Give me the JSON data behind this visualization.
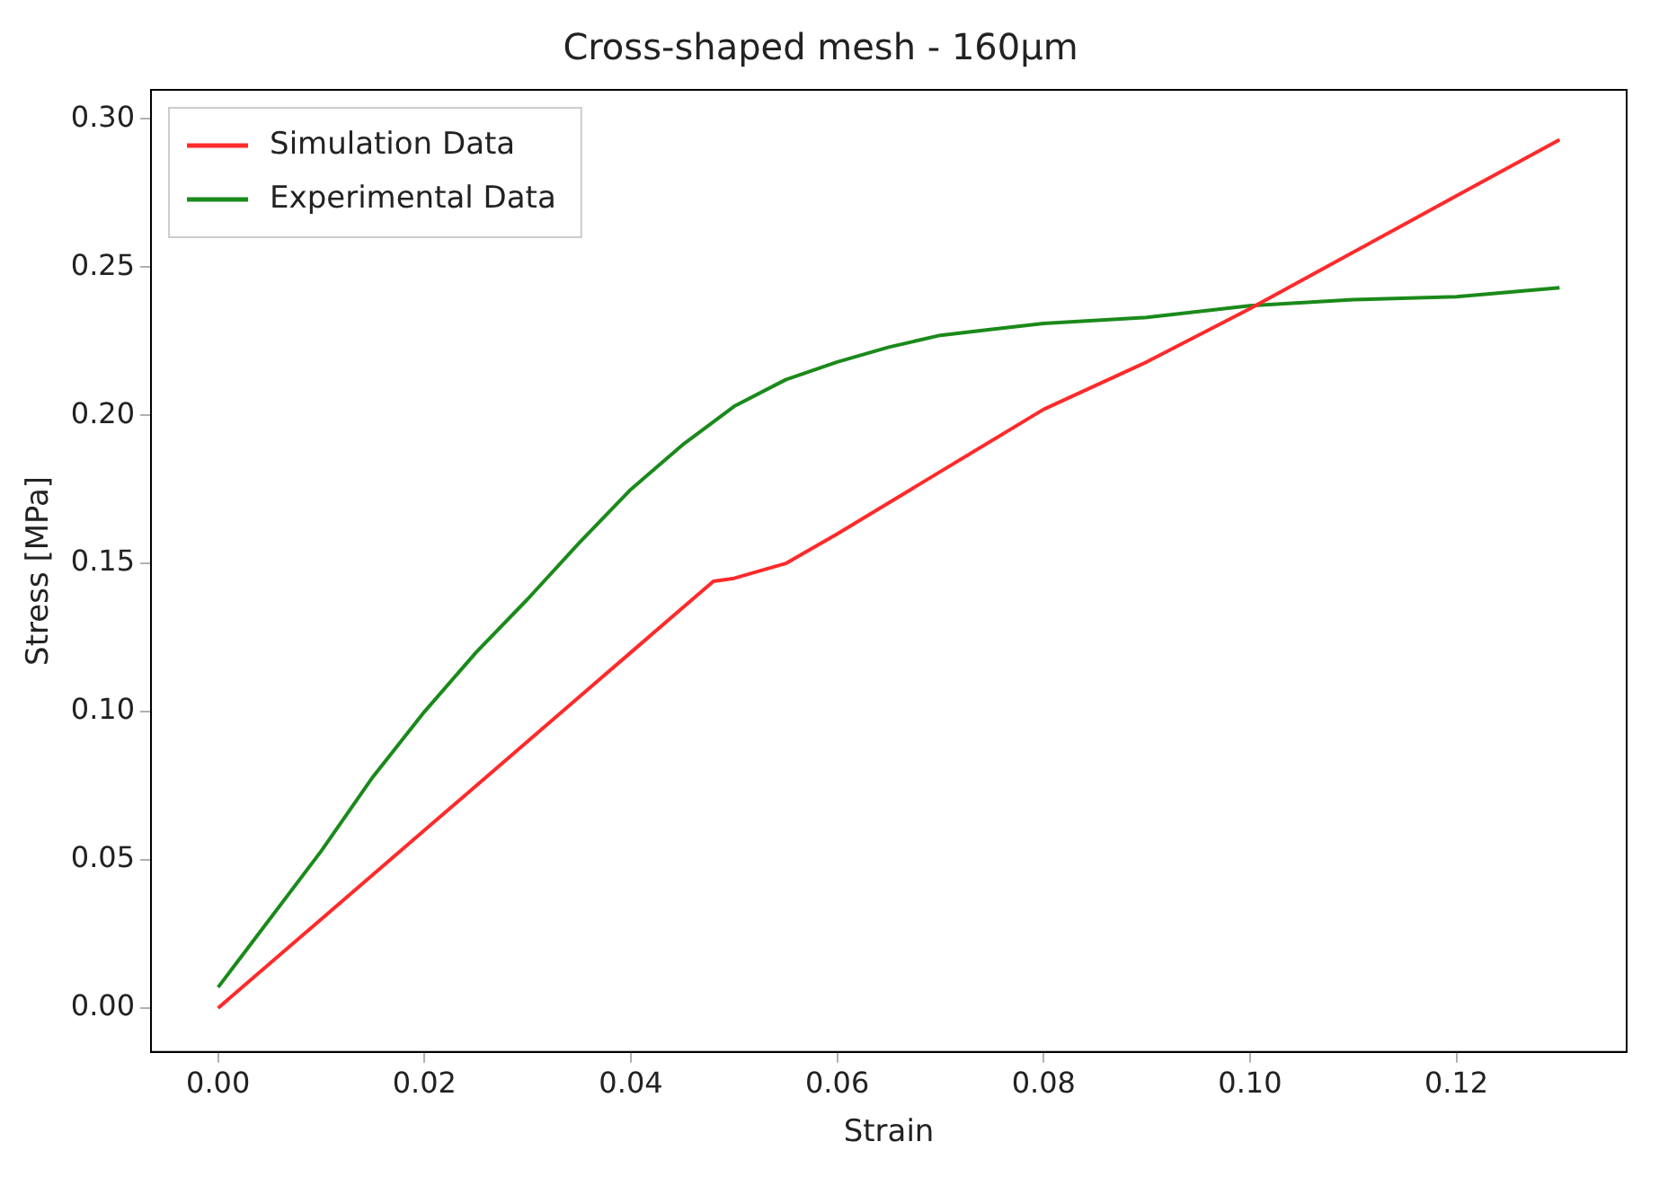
{
  "chart_data": {
    "type": "line",
    "title": "Cross-shaped mesh - 160μm",
    "xlabel": "Strain",
    "ylabel": "Stress [MPa]",
    "xlim": [
      -0.0065,
      0.1365
    ],
    "ylim": [
      -0.0148,
      0.3098
    ],
    "xticks": [
      {
        "value": 0,
        "label": "0.00"
      },
      {
        "value": 0.02,
        "label": "0.02"
      },
      {
        "value": 0.04,
        "label": "0.04"
      },
      {
        "value": 0.06,
        "label": "0.06"
      },
      {
        "value": 0.08,
        "label": "0.08"
      },
      {
        "value": 0.1,
        "label": "0.10"
      },
      {
        "value": 0.12,
        "label": "0.12"
      }
    ],
    "yticks": [
      {
        "value": 0,
        "label": "0.00"
      },
      {
        "value": 0.05,
        "label": "0.05"
      },
      {
        "value": 0.1,
        "label": "0.10"
      },
      {
        "value": 0.15,
        "label": "0.15"
      },
      {
        "value": 0.2,
        "label": "0.20"
      },
      {
        "value": 0.25,
        "label": "0.25"
      },
      {
        "value": 0.3,
        "label": "0.30"
      }
    ],
    "grid": false,
    "legend": "top left",
    "marker": "none",
    "line_style": "solid",
    "series": [
      {
        "name": "Simulation Data",
        "color": "#ff2a2a",
        "x": [
          0,
          0.02,
          0.04,
          0.048,
          0.05,
          0.055,
          0.06,
          0.07,
          0.08,
          0.09,
          0.1,
          0.11,
          0.12,
          0.13
        ],
        "values": [
          0,
          0.06,
          0.12,
          0.144,
          0.145,
          0.15,
          0.16,
          0.181,
          0.202,
          0.218,
          0.236,
          0.255,
          0.274,
          0.293
        ]
      },
      {
        "name": "Experimental Data",
        "color": "#1a8a1a",
        "x": [
          0,
          0.005,
          0.01,
          0.015,
          0.02,
          0.025,
          0.03,
          0.035,
          0.04,
          0.045,
          0.05,
          0.055,
          0.06,
          0.065,
          0.07,
          0.075,
          0.08,
          0.09,
          0.1,
          0.11,
          0.12,
          0.13
        ],
        "values": [
          0.007,
          0.03,
          0.053,
          0.078,
          0.1,
          0.12,
          0.138,
          0.157,
          0.175,
          0.19,
          0.203,
          0.212,
          0.218,
          0.223,
          0.227,
          0.229,
          0.231,
          0.233,
          0.237,
          0.239,
          0.24,
          0.243
        ]
      }
    ]
  }
}
